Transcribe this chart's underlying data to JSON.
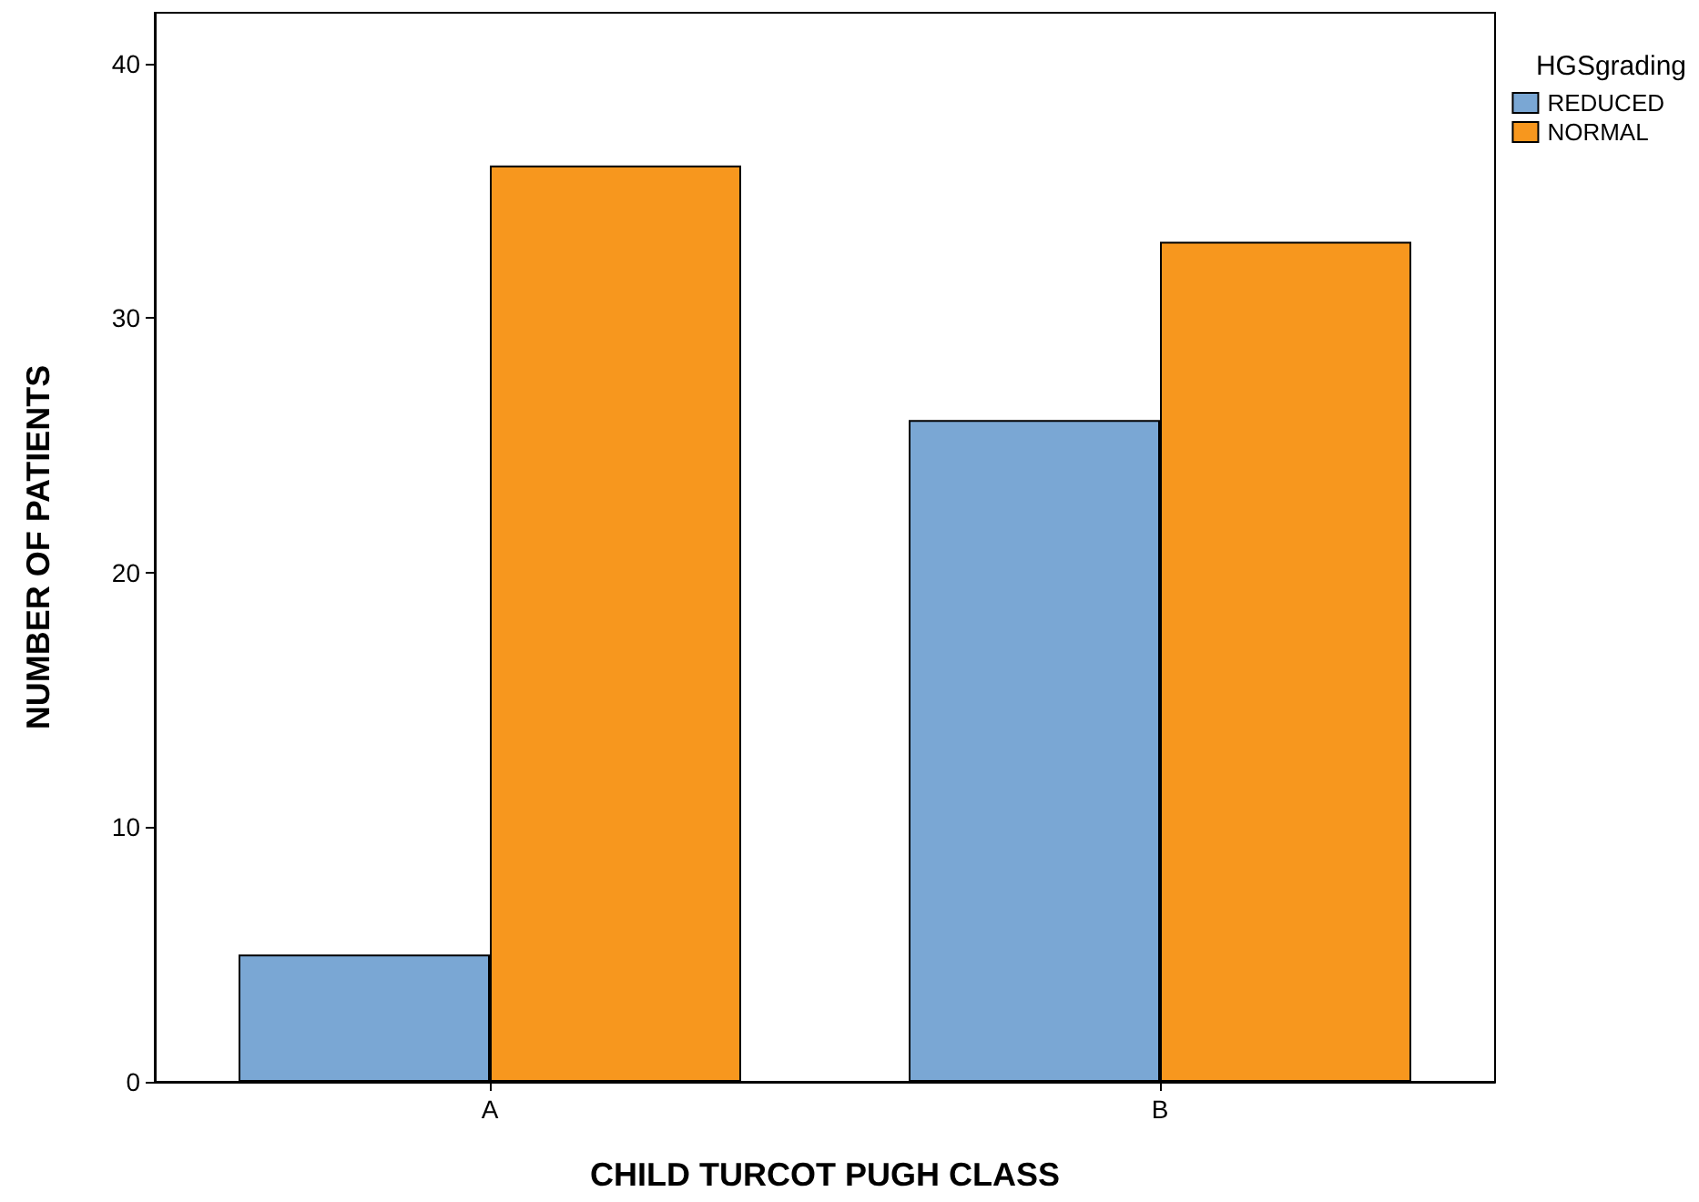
{
  "chart_data": {
    "type": "bar",
    "xlabel": "CHILD TURCOT PUGH CLASS",
    "ylabel": "NUMBER OF PATIENTS",
    "legend_title": "HGSgrading",
    "categories": [
      "A",
      "B"
    ],
    "series": [
      {
        "name": "REDUCED",
        "color": "#7aa7d4",
        "values": [
          5,
          26
        ]
      },
      {
        "name": "NORMAL",
        "color": "#f7971e",
        "values": [
          36,
          33
        ]
      }
    ],
    "ylim": [
      0,
      42
    ],
    "yticks": [
      0,
      10,
      20,
      30,
      40
    ],
    "grid": false,
    "legend": "top right"
  }
}
